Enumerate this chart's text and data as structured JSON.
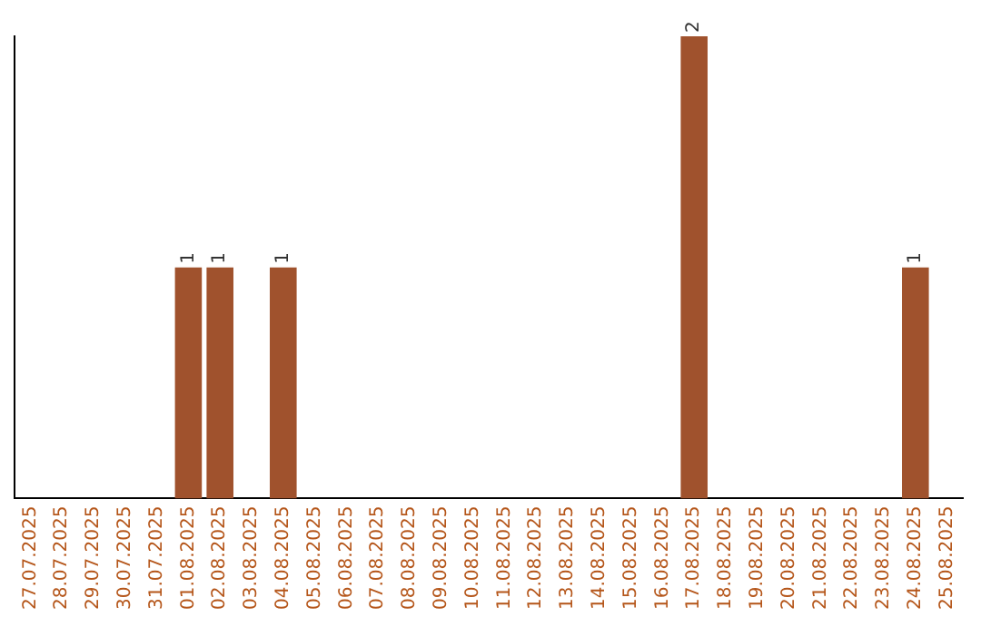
{
  "chart_data": {
    "type": "bar",
    "categories": [
      "27.07.2025",
      "28.07.2025",
      "29.07.2025",
      "30.07.2025",
      "31.07.2025",
      "01.08.2025",
      "02.08.2025",
      "03.08.2025",
      "04.08.2025",
      "05.08.2025",
      "06.08.2025",
      "07.08.2025",
      "08.08.2025",
      "09.08.2025",
      "10.08.2025",
      "11.08.2025",
      "12.08.2025",
      "13.08.2025",
      "14.08.2025",
      "15.08.2025",
      "16.08.2025",
      "17.08.2025",
      "18.08.2025",
      "19.08.2025",
      "20.08.2025",
      "21.08.2025",
      "22.08.2025",
      "23.08.2025",
      "24.08.2025",
      "25.08.2025"
    ],
    "values": [
      0,
      0,
      0,
      0,
      0,
      1,
      1,
      0,
      1,
      0,
      0,
      0,
      0,
      0,
      0,
      0,
      0,
      0,
      0,
      0,
      0,
      2,
      0,
      0,
      0,
      0,
      0,
      0,
      1,
      0
    ],
    "value_labels": [
      null,
      null,
      null,
      null,
      null,
      "1",
      "1",
      null,
      "1",
      null,
      null,
      null,
      null,
      null,
      null,
      null,
      null,
      null,
      null,
      null,
      null,
      "2",
      null,
      null,
      null,
      null,
      null,
      null,
      "1",
      null
    ],
    "color": "#a0522d",
    "tick_labels": "x",
    "grid": false,
    "legend": false
  }
}
